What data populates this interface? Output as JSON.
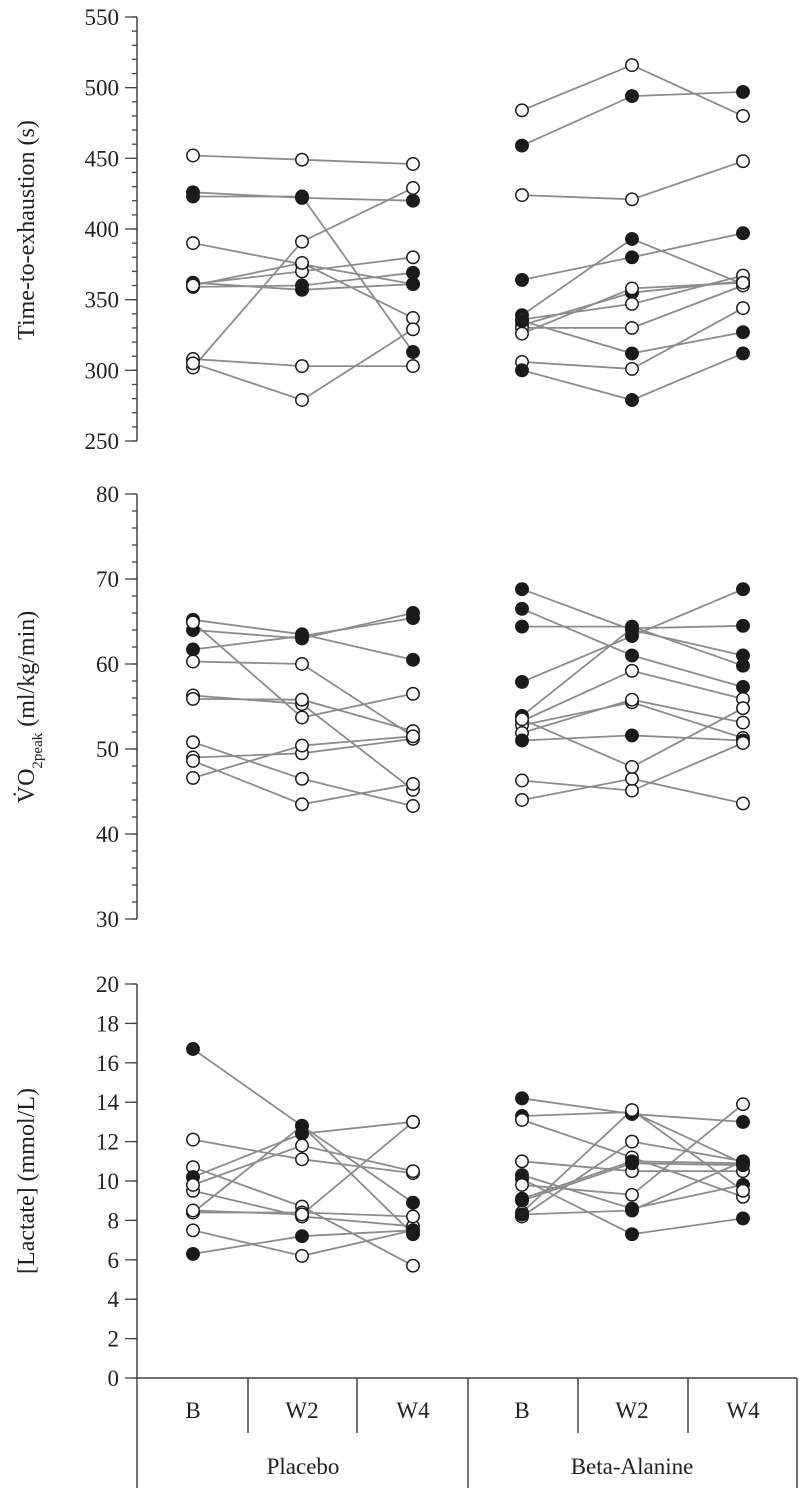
{
  "colors": {
    "line": "#8c8c8c",
    "filled_marker": "#1a1a1a",
    "open_marker": "#ffffff",
    "axis": "#444444"
  },
  "chart_data": [
    {
      "type": "scatter",
      "title": "",
      "ylabel": "Time-to-exhaustion (s)",
      "ylim": [
        250,
        550
      ],
      "yticks": [
        250,
        300,
        350,
        400,
        450,
        500,
        550
      ],
      "minor_step": 10,
      "connect_series": true,
      "groups": [
        {
          "name": "Placebo",
          "series": [
            {
              "filled": false,
              "values": [
                452,
                449,
                446
              ]
            },
            {
              "filled": true,
              "values": [
                426,
                422,
                420
              ]
            },
            {
              "filled": true,
              "values": [
                423,
                423,
                313
              ]
            },
            {
              "filled": false,
              "values": [
                390,
                375,
                361
              ]
            },
            {
              "filled": true,
              "values": [
                362,
                357,
                361
              ]
            },
            {
              "filled": true,
              "values": [
                359,
                360,
                369
              ]
            },
            {
              "filled": false,
              "values": [
                361,
                370,
                380
              ]
            },
            {
              "filled": false,
              "values": [
                360,
                376,
                337
              ]
            },
            {
              "filled": false,
              "values": [
                308,
                303,
                303
              ]
            },
            {
              "filled": false,
              "values": [
                302,
                391,
                429
              ]
            },
            {
              "filled": false,
              "values": [
                305,
                279,
                329
              ]
            }
          ]
        },
        {
          "name": "Beta-Alanine",
          "series": [
            {
              "filled": false,
              "values": [
                484,
                516,
                480
              ]
            },
            {
              "filled": true,
              "values": [
                459,
                494,
                497
              ]
            },
            {
              "filled": false,
              "values": [
                424,
                421,
                448
              ]
            },
            {
              "filled": true,
              "values": [
                364,
                380,
                397
              ]
            },
            {
              "filled": true,
              "values": [
                339,
                393,
                361
              ]
            },
            {
              "filled": true,
              "values": [
                332,
                355,
                363
              ]
            },
            {
              "filled": false,
              "values": [
                336,
                347,
                367
              ]
            },
            {
              "filled": false,
              "values": [
                330,
                330,
                360
              ]
            },
            {
              "filled": false,
              "values": [
                326,
                358,
                362
              ]
            },
            {
              "filled": true,
              "values": [
                335,
                312,
                327
              ]
            },
            {
              "filled": false,
              "values": [
                306,
                301,
                344
              ]
            },
            {
              "filled": true,
              "values": [
                300,
                279,
                312
              ]
            }
          ]
        }
      ]
    },
    {
      "type": "scatter",
      "title": "",
      "ylabel": "V̇O",
      "ylabel_sub": "2peak",
      "ylabel_suffix": " (ml/kg/min)",
      "ylim": [
        30,
        80
      ],
      "yticks": [
        30,
        40,
        50,
        60,
        70,
        80
      ],
      "minor_step": 2,
      "connect_series": true,
      "groups": [
        {
          "name": "Placebo",
          "series": [
            {
              "filled": true,
              "values": [
                65.2,
                63.5,
                60.5
              ]
            },
            {
              "filled": true,
              "values": [
                64.0,
                63.0,
                66.0
              ]
            },
            {
              "filled": true,
              "values": [
                61.7,
                63.3,
                65.4
              ]
            },
            {
              "filled": false,
              "values": [
                60.3,
                60.0,
                51.5
              ]
            },
            {
              "filled": false,
              "values": [
                56.3,
                55.3,
                45.2
              ]
            },
            {
              "filled": false,
              "values": [
                55.9,
                55.8,
                52.1
              ]
            },
            {
              "filled": false,
              "values": [
                50.8,
                46.5,
                43.3
              ]
            },
            {
              "filled": false,
              "values": [
                49.0,
                49.5,
                51.2
              ]
            },
            {
              "filled": false,
              "values": [
                48.6,
                43.5,
                45.9
              ]
            },
            {
              "filled": false,
              "values": [
                46.6,
                50.4,
                51.5
              ]
            },
            {
              "filled": false,
              "values": [
                64.9,
                53.7,
                56.5
              ]
            }
          ]
        },
        {
          "name": "Beta-Alanine",
          "series": [
            {
              "filled": true,
              "values": [
                68.8,
                64.0,
                61.0
              ]
            },
            {
              "filled": true,
              "values": [
                66.5,
                61.0,
                57.3
              ]
            },
            {
              "filled": true,
              "values": [
                64.4,
                64.4,
                59.8
              ]
            },
            {
              "filled": true,
              "values": [
                57.9,
                63.3,
                68.8
              ]
            },
            {
              "filled": true,
              "values": [
                53.9,
                64.2,
                64.5
              ]
            },
            {
              "filled": false,
              "values": [
                53.3,
                59.2,
                55.9
              ]
            },
            {
              "filled": false,
              "values": [
                52.8,
                55.5,
                51.3
              ]
            },
            {
              "filled": false,
              "values": [
                51.9,
                55.8,
                53.1
              ]
            },
            {
              "filled": true,
              "values": [
                51.0,
                51.6,
                51.0
              ]
            },
            {
              "filled": false,
              "values": [
                46.3,
                45.1,
                50.7
              ]
            },
            {
              "filled": false,
              "values": [
                44.0,
                46.5,
                43.6
              ]
            },
            {
              "filled": false,
              "values": [
                53.5,
                47.9,
                54.8
              ]
            }
          ]
        }
      ]
    },
    {
      "type": "scatter",
      "title": "",
      "ylabel": "[Lactate] (mmol/L)",
      "ylim": [
        0,
        20
      ],
      "yticks": [
        0,
        2,
        4,
        6,
        8,
        10,
        12,
        14,
        16,
        18,
        20
      ],
      "minor_step": 2,
      "connect_series": true,
      "groups": [
        {
          "name": "Placebo",
          "series": [
            {
              "filled": true,
              "values": [
                16.7,
                12.8,
                8.9
              ]
            },
            {
              "filled": false,
              "values": [
                12.1,
                11.1,
                10.4
              ]
            },
            {
              "filled": false,
              "values": [
                10.7,
                8.7,
                5.7
              ]
            },
            {
              "filled": true,
              "values": [
                10.2,
                12.4,
                13.0
              ]
            },
            {
              "filled": false,
              "values": [
                9.5,
                8.2,
                7.7
              ]
            },
            {
              "filled": true,
              "values": [
                8.4,
                12.8,
                7.3
              ]
            },
            {
              "filled": false,
              "values": [
                8.4,
                8.4,
                8.2
              ]
            },
            {
              "filled": false,
              "values": [
                7.5,
                6.2,
                7.5
              ]
            },
            {
              "filled": true,
              "values": [
                6.3,
                7.2,
                7.5
              ]
            },
            {
              "filled": false,
              "values": [
                9.8,
                11.8,
                10.5
              ]
            },
            {
              "filled": false,
              "values": [
                8.5,
                8.3,
                13.0
              ]
            }
          ]
        },
        {
          "name": "Beta-Alanine",
          "series": [
            {
              "filled": true,
              "values": [
                14.2,
                13.4,
                13.0
              ]
            },
            {
              "filled": true,
              "values": [
                13.3,
                13.5,
                10.9
              ]
            },
            {
              "filled": false,
              "values": [
                13.1,
                11.2,
                9.2
              ]
            },
            {
              "filled": false,
              "values": [
                11.0,
                10.5,
                10.5
              ]
            },
            {
              "filled": true,
              "values": [
                10.3,
                8.6,
                9.8
              ]
            },
            {
              "filled": true,
              "values": [
                10.1,
                7.3,
                8.1
              ]
            },
            {
              "filled": false,
              "values": [
                9.8,
                9.3,
                13.9
              ]
            },
            {
              "filled": true,
              "values": [
                9.1,
                11.0,
                10.9
              ]
            },
            {
              "filled": true,
              "values": [
                9.0,
                10.9,
                10.8
              ]
            },
            {
              "filled": false,
              "values": [
                8.4,
                13.6,
                9.5
              ]
            },
            {
              "filled": false,
              "values": [
                8.2,
                12.0,
                11.0
              ]
            },
            {
              "filled": true,
              "values": [
                8.3,
                8.5,
                11.0
              ]
            }
          ]
        }
      ]
    }
  ],
  "x_axis": {
    "categories": [
      "B",
      "W2",
      "W4",
      "B",
      "W2",
      "W4"
    ],
    "groups": [
      "Placebo",
      "Beta-Alanine"
    ]
  }
}
